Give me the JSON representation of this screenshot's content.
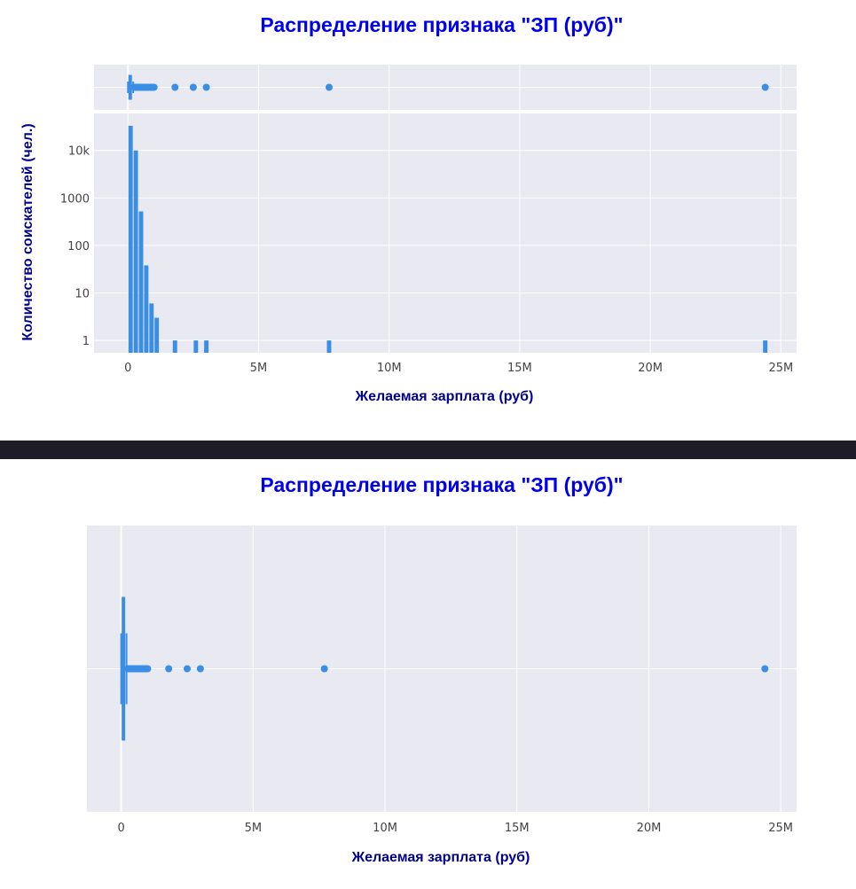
{
  "colors": {
    "title": "#0000ee",
    "axis_title": "#00008b",
    "plot_bg": "#e9e9f1",
    "grid": "#ffffff",
    "mark": "#3a8ee6",
    "divider": "#1e1d27"
  },
  "chart_data": [
    {
      "type": "histogram",
      "title": "Распределение признака \"ЗП (руб)\"",
      "xlabel": "Желаемая зарплата (руб)",
      "ylabel": "Количество соискателей (чел.)",
      "y_scale": "log",
      "xlim": [
        -1300000,
        25600000
      ],
      "ylim_log": [
        0.55,
        60000
      ],
      "x_ticks": [
        0,
        5000000,
        10000000,
        15000000,
        20000000,
        25000000
      ],
      "x_tick_labels": [
        "0",
        "5M",
        "10M",
        "15M",
        "20M",
        "25M"
      ],
      "y_ticks": [
        1,
        10,
        100,
        1000,
        10000
      ],
      "y_tick_labels": [
        "1",
        "10",
        "100",
        "1000",
        "10k"
      ],
      "grid": true,
      "bins": [
        {
          "x0": 0,
          "x1": 200000,
          "count": 33000
        },
        {
          "x0": 200000,
          "x1": 400000,
          "count": 10000
        },
        {
          "x0": 400000,
          "x1": 600000,
          "count": 520
        },
        {
          "x0": 600000,
          "x1": 800000,
          "count": 38
        },
        {
          "x0": 800000,
          "x1": 1000000,
          "count": 6
        },
        {
          "x0": 1000000,
          "x1": 1200000,
          "count": 3
        },
        {
          "x0": 1700000,
          "x1": 1900000,
          "count": 1
        },
        {
          "x0": 2500000,
          "x1": 2700000,
          "count": 1
        },
        {
          "x0": 2900000,
          "x1": 3100000,
          "count": 1
        },
        {
          "x0": 7600000,
          "x1": 7800000,
          "count": 1
        },
        {
          "x0": 24300000,
          "x1": 24500000,
          "count": 1
        }
      ],
      "marginal": {
        "type": "box",
        "q1": 50000,
        "median": 70000,
        "q3": 100000,
        "whisker_low": 0,
        "whisker_high": 200000,
        "outliers": [
          250000,
          300000,
          350000,
          400000,
          450000,
          500000,
          550000,
          600000,
          650000,
          700000,
          750000,
          800000,
          850000,
          900000,
          950000,
          1000000,
          1800000,
          2500000,
          3000000,
          7700000,
          24400000
        ]
      }
    },
    {
      "type": "box",
      "title": "Распределение признака \"ЗП (руб)\"",
      "xlabel": "Желаемая зарплата (руб)",
      "xlim": [
        -1300000,
        25600000
      ],
      "x_ticks": [
        0,
        5000000,
        10000000,
        15000000,
        20000000,
        25000000
      ],
      "x_tick_labels": [
        "0",
        "5M",
        "10M",
        "15M",
        "20M",
        "25M"
      ],
      "grid": true,
      "q1": 50000,
      "median": 70000,
      "q3": 100000,
      "whisker_low": 0,
      "whisker_high": 200000,
      "outliers": [
        250000,
        300000,
        350000,
        400000,
        450000,
        500000,
        550000,
        600000,
        650000,
        700000,
        750000,
        800000,
        850000,
        900000,
        950000,
        1000000,
        1800000,
        2500000,
        3000000,
        7700000,
        24400000
      ]
    }
  ]
}
